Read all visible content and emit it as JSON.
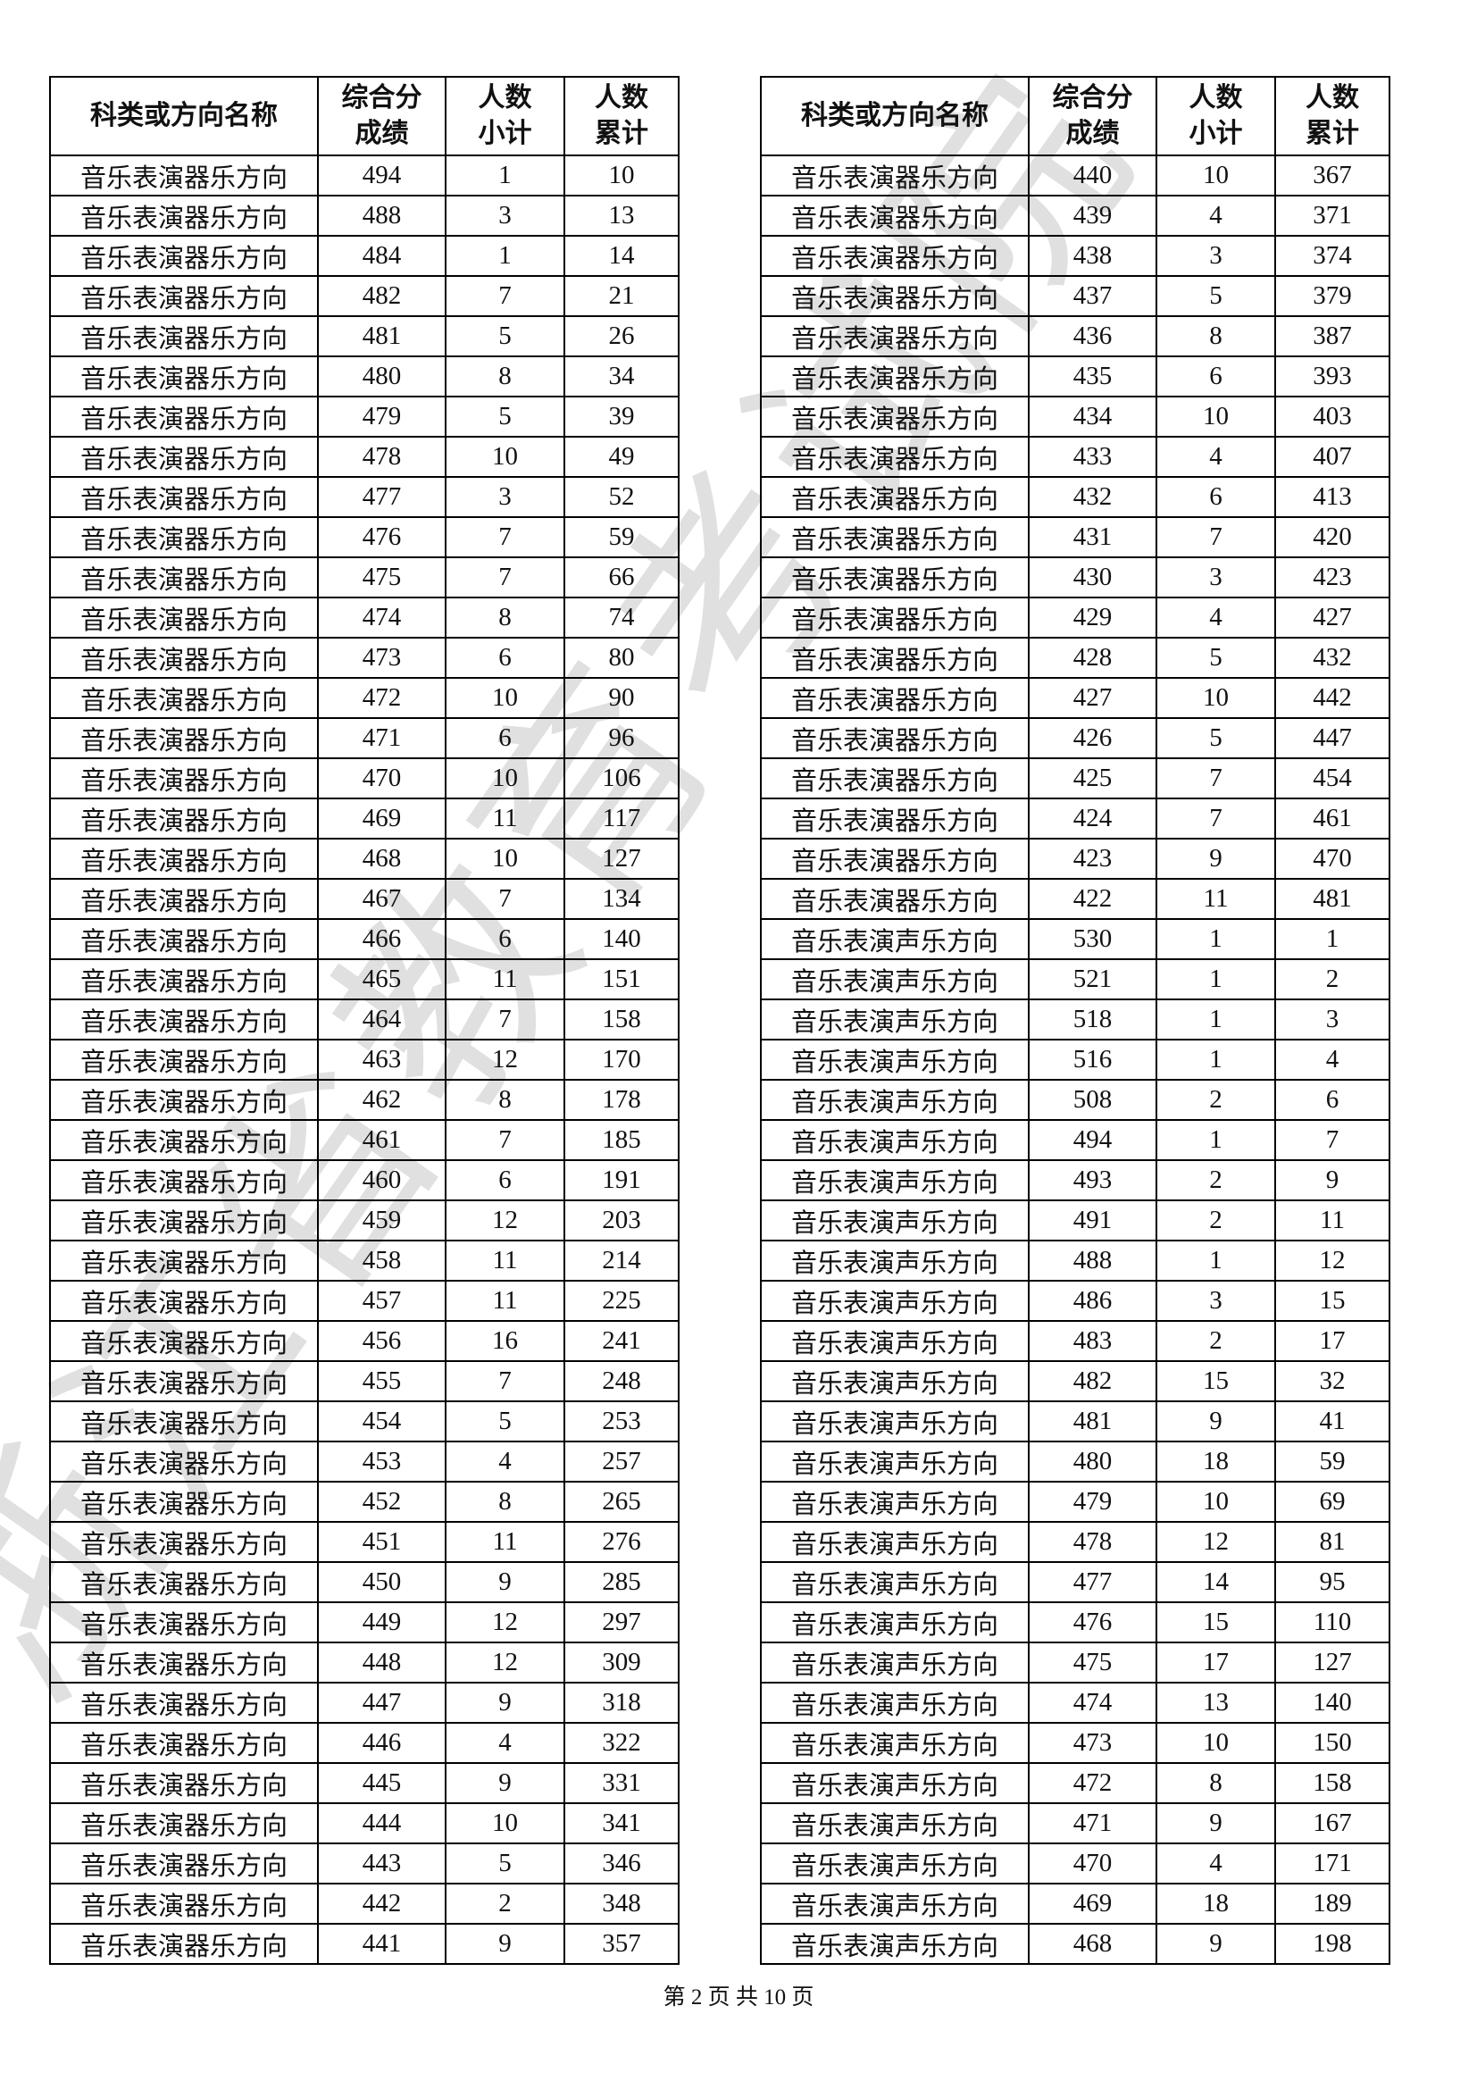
{
  "page": {
    "watermark": "浙江省教育考试院",
    "footer": "第 2 页 共 10 页"
  },
  "columns": {
    "name": "科类或方向名称",
    "score_l1": "综合分",
    "score_l2": "成绩",
    "count_l1": "人数",
    "count_l2": "小计",
    "cum_l1": "人数",
    "cum_l2": "累计"
  },
  "left_table": {
    "rows": [
      [
        "音乐表演器乐方向",
        494,
        1,
        10
      ],
      [
        "音乐表演器乐方向",
        488,
        3,
        13
      ],
      [
        "音乐表演器乐方向",
        484,
        1,
        14
      ],
      [
        "音乐表演器乐方向",
        482,
        7,
        21
      ],
      [
        "音乐表演器乐方向",
        481,
        5,
        26
      ],
      [
        "音乐表演器乐方向",
        480,
        8,
        34
      ],
      [
        "音乐表演器乐方向",
        479,
        5,
        39
      ],
      [
        "音乐表演器乐方向",
        478,
        10,
        49
      ],
      [
        "音乐表演器乐方向",
        477,
        3,
        52
      ],
      [
        "音乐表演器乐方向",
        476,
        7,
        59
      ],
      [
        "音乐表演器乐方向",
        475,
        7,
        66
      ],
      [
        "音乐表演器乐方向",
        474,
        8,
        74
      ],
      [
        "音乐表演器乐方向",
        473,
        6,
        80
      ],
      [
        "音乐表演器乐方向",
        472,
        10,
        90
      ],
      [
        "音乐表演器乐方向",
        471,
        6,
        96
      ],
      [
        "音乐表演器乐方向",
        470,
        10,
        106
      ],
      [
        "音乐表演器乐方向",
        469,
        11,
        117
      ],
      [
        "音乐表演器乐方向",
        468,
        10,
        127
      ],
      [
        "音乐表演器乐方向",
        467,
        7,
        134
      ],
      [
        "音乐表演器乐方向",
        466,
        6,
        140
      ],
      [
        "音乐表演器乐方向",
        465,
        11,
        151
      ],
      [
        "音乐表演器乐方向",
        464,
        7,
        158
      ],
      [
        "音乐表演器乐方向",
        463,
        12,
        170
      ],
      [
        "音乐表演器乐方向",
        462,
        8,
        178
      ],
      [
        "音乐表演器乐方向",
        461,
        7,
        185
      ],
      [
        "音乐表演器乐方向",
        460,
        6,
        191
      ],
      [
        "音乐表演器乐方向",
        459,
        12,
        203
      ],
      [
        "音乐表演器乐方向",
        458,
        11,
        214
      ],
      [
        "音乐表演器乐方向",
        457,
        11,
        225
      ],
      [
        "音乐表演器乐方向",
        456,
        16,
        241
      ],
      [
        "音乐表演器乐方向",
        455,
        7,
        248
      ],
      [
        "音乐表演器乐方向",
        454,
        5,
        253
      ],
      [
        "音乐表演器乐方向",
        453,
        4,
        257
      ],
      [
        "音乐表演器乐方向",
        452,
        8,
        265
      ],
      [
        "音乐表演器乐方向",
        451,
        11,
        276
      ],
      [
        "音乐表演器乐方向",
        450,
        9,
        285
      ],
      [
        "音乐表演器乐方向",
        449,
        12,
        297
      ],
      [
        "音乐表演器乐方向",
        448,
        12,
        309
      ],
      [
        "音乐表演器乐方向",
        447,
        9,
        318
      ],
      [
        "音乐表演器乐方向",
        446,
        4,
        322
      ],
      [
        "音乐表演器乐方向",
        445,
        9,
        331
      ],
      [
        "音乐表演器乐方向",
        444,
        10,
        341
      ],
      [
        "音乐表演器乐方向",
        443,
        5,
        346
      ],
      [
        "音乐表演器乐方向",
        442,
        2,
        348
      ],
      [
        "音乐表演器乐方向",
        441,
        9,
        357
      ]
    ]
  },
  "right_table": {
    "rows": [
      [
        "音乐表演器乐方向",
        440,
        10,
        367
      ],
      [
        "音乐表演器乐方向",
        439,
        4,
        371
      ],
      [
        "音乐表演器乐方向",
        438,
        3,
        374
      ],
      [
        "音乐表演器乐方向",
        437,
        5,
        379
      ],
      [
        "音乐表演器乐方向",
        436,
        8,
        387
      ],
      [
        "音乐表演器乐方向",
        435,
        6,
        393
      ],
      [
        "音乐表演器乐方向",
        434,
        10,
        403
      ],
      [
        "音乐表演器乐方向",
        433,
        4,
        407
      ],
      [
        "音乐表演器乐方向",
        432,
        6,
        413
      ],
      [
        "音乐表演器乐方向",
        431,
        7,
        420
      ],
      [
        "音乐表演器乐方向",
        430,
        3,
        423
      ],
      [
        "音乐表演器乐方向",
        429,
        4,
        427
      ],
      [
        "音乐表演器乐方向",
        428,
        5,
        432
      ],
      [
        "音乐表演器乐方向",
        427,
        10,
        442
      ],
      [
        "音乐表演器乐方向",
        426,
        5,
        447
      ],
      [
        "音乐表演器乐方向",
        425,
        7,
        454
      ],
      [
        "音乐表演器乐方向",
        424,
        7,
        461
      ],
      [
        "音乐表演器乐方向",
        423,
        9,
        470
      ],
      [
        "音乐表演器乐方向",
        422,
        11,
        481
      ],
      [
        "音乐表演声乐方向",
        530,
        1,
        1
      ],
      [
        "音乐表演声乐方向",
        521,
        1,
        2
      ],
      [
        "音乐表演声乐方向",
        518,
        1,
        3
      ],
      [
        "音乐表演声乐方向",
        516,
        1,
        4
      ],
      [
        "音乐表演声乐方向",
        508,
        2,
        6
      ],
      [
        "音乐表演声乐方向",
        494,
        1,
        7
      ],
      [
        "音乐表演声乐方向",
        493,
        2,
        9
      ],
      [
        "音乐表演声乐方向",
        491,
        2,
        11
      ],
      [
        "音乐表演声乐方向",
        488,
        1,
        12
      ],
      [
        "音乐表演声乐方向",
        486,
        3,
        15
      ],
      [
        "音乐表演声乐方向",
        483,
        2,
        17
      ],
      [
        "音乐表演声乐方向",
        482,
        15,
        32
      ],
      [
        "音乐表演声乐方向",
        481,
        9,
        41
      ],
      [
        "音乐表演声乐方向",
        480,
        18,
        59
      ],
      [
        "音乐表演声乐方向",
        479,
        10,
        69
      ],
      [
        "音乐表演声乐方向",
        478,
        12,
        81
      ],
      [
        "音乐表演声乐方向",
        477,
        14,
        95
      ],
      [
        "音乐表演声乐方向",
        476,
        15,
        110
      ],
      [
        "音乐表演声乐方向",
        475,
        17,
        127
      ],
      [
        "音乐表演声乐方向",
        474,
        13,
        140
      ],
      [
        "音乐表演声乐方向",
        473,
        10,
        150
      ],
      [
        "音乐表演声乐方向",
        472,
        8,
        158
      ],
      [
        "音乐表演声乐方向",
        471,
        9,
        167
      ],
      [
        "音乐表演声乐方向",
        470,
        4,
        171
      ],
      [
        "音乐表演声乐方向",
        469,
        18,
        189
      ],
      [
        "音乐表演声乐方向",
        468,
        9,
        198
      ]
    ]
  }
}
